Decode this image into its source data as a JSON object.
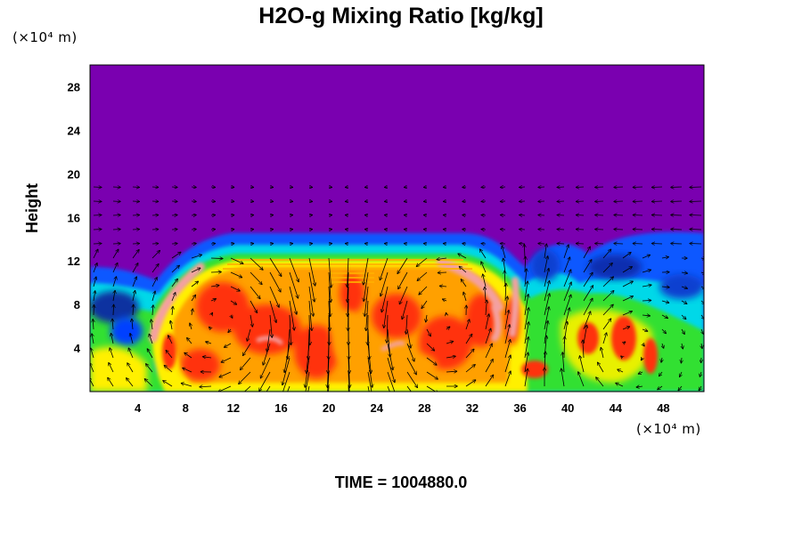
{
  "title": "H2O-g Mixing Ratio [kg/kg]",
  "time_label": "TIME = 1004880.0",
  "chart_data": {
    "type": "heatmap",
    "title": "H2O-g Mixing Ratio [kg/kg]",
    "xlabel": "",
    "ylabel": "Height",
    "x_unit": "(×10⁴ m)",
    "y_unit": "(×10⁴ m)",
    "xlim": [
      0,
      51.4
    ],
    "ylim": [
      0,
      30
    ],
    "x_ticks": [
      4,
      8,
      12,
      16,
      20,
      24,
      28,
      32,
      36,
      40,
      44,
      48
    ],
    "y_ticks": [
      4,
      8,
      12,
      16,
      20,
      24,
      28
    ],
    "overlay": "velocity vectors",
    "colormap_background": "#7a00b0",
    "colors": {
      "upper": "#7a00b0",
      "blue": "#1060ff",
      "cyan": "#00d8e8",
      "green": "#30e030",
      "yellow": "#fff000",
      "orange": "#ffa000",
      "red": "#ff3010",
      "pink": "#f4a0a0"
    }
  }
}
